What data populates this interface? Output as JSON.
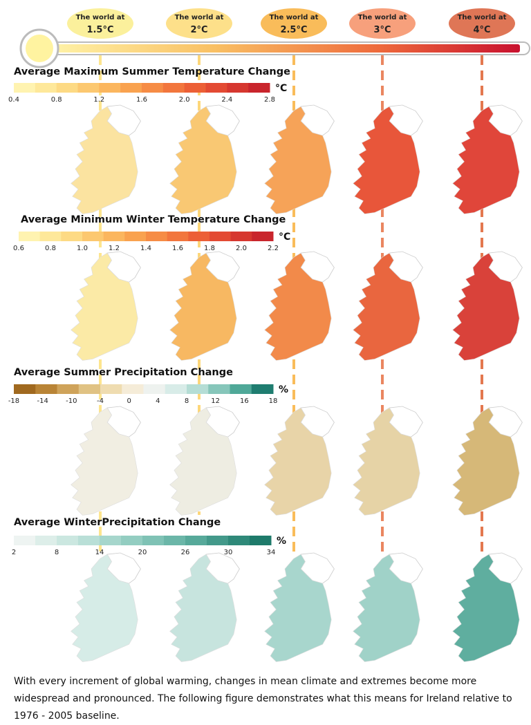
{
  "warming_levels": [
    {
      "prefix": "The world at",
      "level": "1.5°C",
      "color": "#fbf09c",
      "line": "#fde58e"
    },
    {
      "prefix": "The world at",
      "level": "2°C",
      "color": "#fde08a",
      "line": "#fdd77a"
    },
    {
      "prefix": "The world at",
      "level": "2.5°C",
      "color": "#f9bc5a",
      "line": "#f9bc5a"
    },
    {
      "prefix": "The world at",
      "level": "3°C",
      "color": "#f7a07c",
      "line": "#ea8660"
    },
    {
      "prefix": "The world at",
      "level": "4°C",
      "color": "#df7656",
      "line": "#e3784f"
    }
  ],
  "panels": [
    {
      "title": "Average Maximum Summer Temperature Change",
      "unit": "°C",
      "ticks": [
        "0.4",
        "0.8",
        "1.2",
        "1.6",
        "2.0",
        "2.4",
        "2.8"
      ],
      "colors": [
        "#fff3b0",
        "#fee89a",
        "#fdda84",
        "#fcc870",
        "#fbb65e",
        "#f9a24f",
        "#f68c45",
        "#f2763d",
        "#ec5f36",
        "#e34a33",
        "#d6372f",
        "#c9252c"
      ],
      "map_fills": [
        "#fbe3a0",
        "#f9c873",
        "#f6a358",
        "#e8563a",
        "#e0463a"
      ]
    },
    {
      "title": "Average Minimum Winter Temperature Change",
      "unit": "°C",
      "ticks": [
        "0.6",
        "0.8",
        "1.0",
        "1.2",
        "1.4",
        "1.6",
        "1.8",
        "2.0",
        "2.2"
      ],
      "colors": [
        "#fff3b0",
        "#fee89a",
        "#fdda84",
        "#fcc870",
        "#fbb65e",
        "#f9a24f",
        "#f68c45",
        "#f2763d",
        "#ec5f36",
        "#e34a33",
        "#d6372f",
        "#c9252c"
      ],
      "map_fills": [
        "#fbeaa6",
        "#f7b862",
        "#f28a4a",
        "#e9663f",
        "#d9423a"
      ]
    },
    {
      "title": "Average Summer Precipitation  Change",
      "unit": "%",
      "ticks": [
        "-18",
        "-14",
        "-10",
        "-4",
        "0",
        "4",
        "8",
        "12",
        "16",
        "18"
      ],
      "colors": [
        "#a0691f",
        "#b98436",
        "#cfa35a",
        "#e0c283",
        "#efdcb0",
        "#f5ecd8",
        "#eef2ef",
        "#d8ece8",
        "#b5ddd5",
        "#86c6ba",
        "#4fa898",
        "#1f7d70"
      ],
      "map_fills": [
        "#f1eee2",
        "#eeede2",
        "#e8d4a8",
        "#e6d3a6",
        "#d6b878"
      ]
    },
    {
      "title": "Average WinterPrecipitation  Change",
      "unit": "%",
      "ticks": [
        "2",
        "8",
        "14",
        "20",
        "26",
        "30",
        "34"
      ],
      "colors": [
        "#eef4f2",
        "#ddeee9",
        "#cbe7e0",
        "#b9dfd7",
        "#a6d6cc",
        "#93cdc1",
        "#7fc2b5",
        "#6bb6a8",
        "#57a99a",
        "#43998a",
        "#2f8979",
        "#1e7a6a"
      ],
      "map_fills": [
        "#d6ece7",
        "#c7e4de",
        "#a8d6cd",
        "#a0d2c8",
        "#5fae9f"
      ]
    }
  ],
  "caption": "With every increment of global warming, changes in mean climate and extremes become more widespread and pronounced.  The following figure demonstrates what this means for Ireland relative to 1976 - 2005 baseline."
}
